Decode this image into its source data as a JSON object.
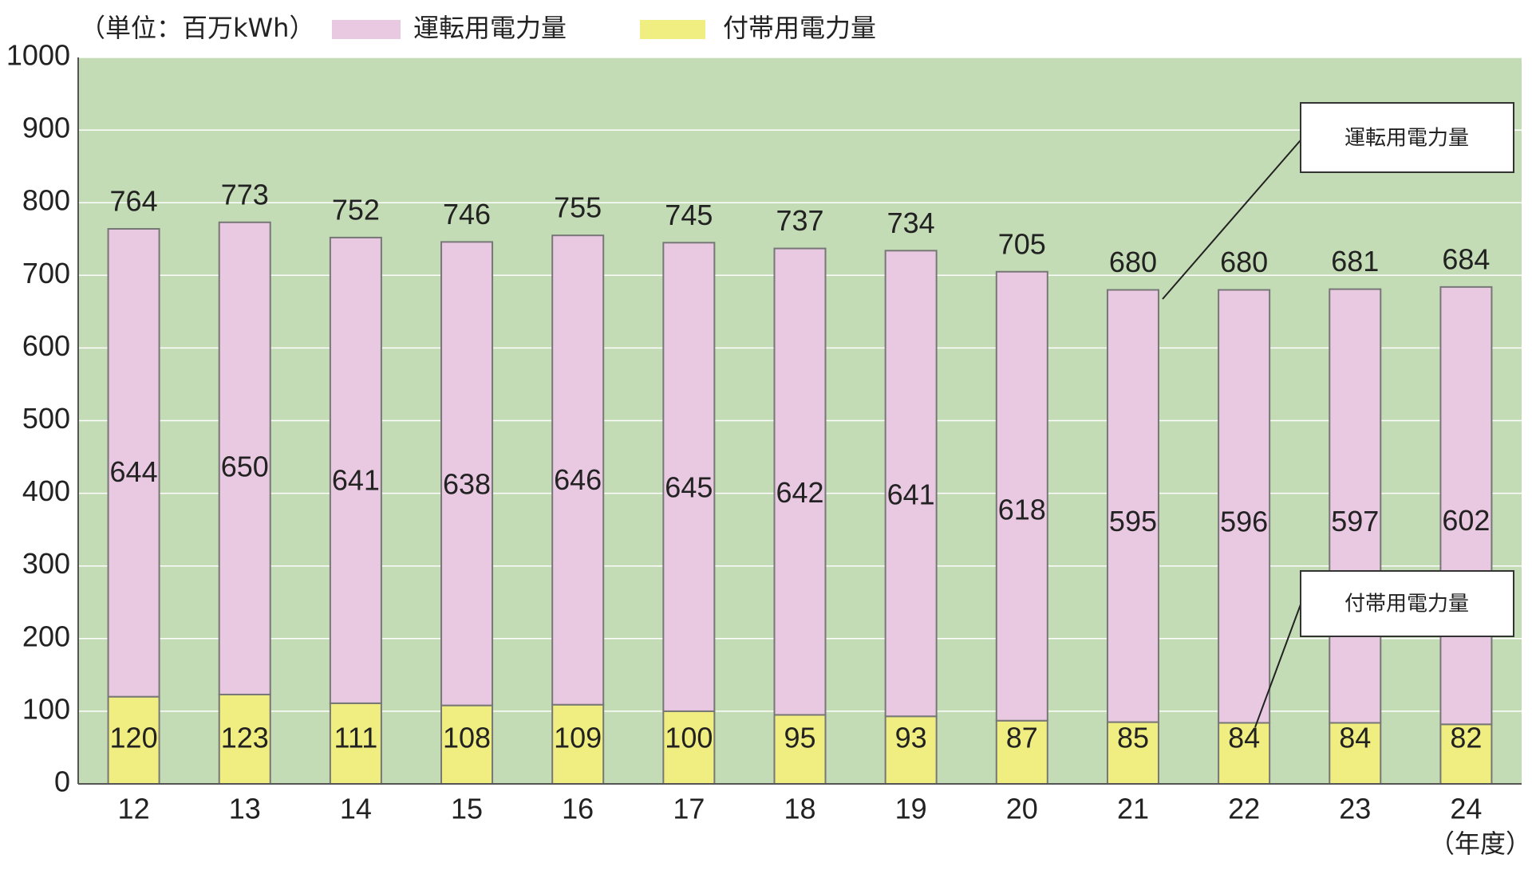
{
  "chart_data": {
    "type": "stacked-bar",
    "unit_label": "（単位：百万kWh）",
    "x_label": "（年度）",
    "categories": [
      "12",
      "13",
      "14",
      "15",
      "16",
      "17",
      "18",
      "19",
      "20",
      "21",
      "22",
      "23",
      "24"
    ],
    "series": [
      {
        "name": "付帯用電力量",
        "color": "#f0ee80",
        "values": [
          120,
          123,
          111,
          108,
          109,
          100,
          95,
          93,
          87,
          85,
          84,
          84,
          82
        ]
      },
      {
        "name": "運転用電力量",
        "color": "#e9c9e1",
        "values": [
          644,
          650,
          641,
          638,
          646,
          645,
          642,
          641,
          618,
          595,
          596,
          597,
          602
        ]
      }
    ],
    "totals": [
      764,
      773,
      752,
      746,
      755,
      745,
      737,
      734,
      705,
      680,
      680,
      681,
      684
    ],
    "ylim": [
      0,
      1000
    ],
    "yticks": [
      0,
      100,
      200,
      300,
      400,
      500,
      600,
      700,
      800,
      900,
      1000
    ],
    "grid": true,
    "background": "#c3dcb5"
  }
}
